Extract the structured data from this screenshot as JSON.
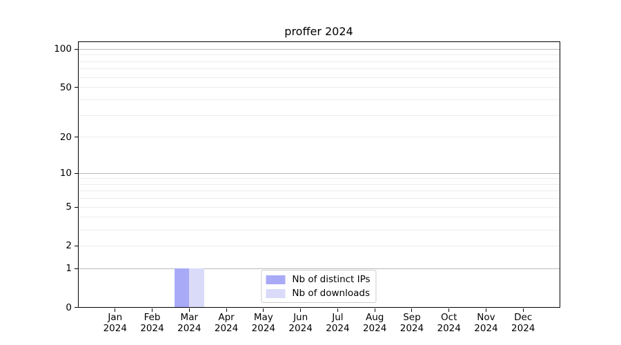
{
  "chart_data": {
    "type": "bar",
    "title": "proffer 2024",
    "categories": [
      "Jan 2024",
      "Feb 2024",
      "Mar 2024",
      "Apr 2024",
      "May 2024",
      "Jun 2024",
      "Jul 2024",
      "Aug 2024",
      "Sep 2024",
      "Oct 2024",
      "Nov 2024",
      "Dec 2024"
    ],
    "x_tick_months": [
      "Jan",
      "Feb",
      "Mar",
      "Apr",
      "May",
      "Jun",
      "Jul",
      "Aug",
      "Sep",
      "Oct",
      "Nov",
      "Dec"
    ],
    "x_tick_year": "2024",
    "series": [
      {
        "name": "Nb of distinct IPs",
        "color": "#a8aaf7",
        "values": [
          0,
          0,
          1,
          0,
          0,
          0,
          0,
          0,
          0,
          0,
          0,
          0
        ]
      },
      {
        "name": "Nb of downloads",
        "color": "#d9dbf9",
        "values": [
          0,
          0,
          1,
          0,
          0,
          0,
          0,
          0,
          0,
          0,
          0,
          0
        ]
      }
    ],
    "yscale": "log1p",
    "ylim": [
      0,
      115
    ],
    "xlabel": "",
    "ylabel": "",
    "y_tick_labels": [
      100,
      50,
      20,
      10,
      5,
      2,
      1,
      0
    ],
    "y_major_gridlines": [
      100,
      10,
      1
    ],
    "y_minor_gridlines": [
      90,
      80,
      70,
      60,
      50,
      40,
      30,
      20,
      9,
      8,
      7,
      6,
      5,
      4,
      3,
      2
    ],
    "grid": true,
    "legend_position": "lower center",
    "colors": {
      "major_grid": "#b8b8b8",
      "minor_grid": "#ececec",
      "spine": "#000000",
      "text": "#000000",
      "legend_border": "#cccccc",
      "background": "#ffffff"
    }
  }
}
